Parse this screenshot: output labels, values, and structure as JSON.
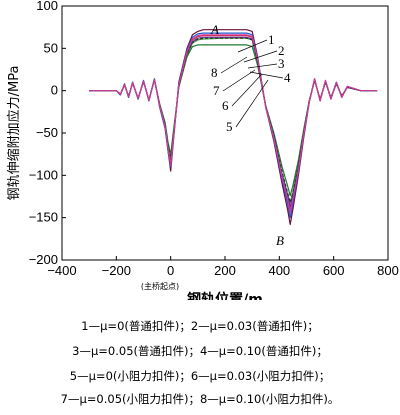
{
  "chart_data": {
    "type": "line",
    "xlabel": "钢轨位置/m",
    "ylabel": "钢轨伸缩附加应力/MPa",
    "x_note": "(主桥起点)",
    "xlim": [
      -400,
      800
    ],
    "ylim": [
      -200,
      100
    ],
    "xticks": [
      "−400",
      "−200",
      "0",
      "200",
      "400",
      "600",
      "800"
    ],
    "yticks": [
      "100",
      "50",
      "0",
      "−50",
      "−100",
      "−150",
      "−200"
    ],
    "point_labels": {
      "A": "A",
      "B": "B"
    },
    "annotations": [
      "1",
      "2",
      "8",
      "3",
      "4",
      "7",
      "6",
      "5"
    ],
    "x": [
      -300,
      -200,
      -185,
      -170,
      -155,
      -140,
      -120,
      -100,
      -80,
      -60,
      -40,
      -20,
      -10,
      0,
      10,
      30,
      60,
      80,
      100,
      120,
      200,
      280,
      300,
      320,
      350,
      380,
      410,
      430,
      440,
      450,
      470,
      490,
      510,
      530,
      550,
      570,
      590,
      610,
      630,
      650,
      700,
      760
    ],
    "series": [
      {
        "name": "1",
        "color": "#6b0f3a",
        "dash": "",
        "values": [
          0,
          0,
          -5,
          8,
          -8,
          10,
          -10,
          12,
          -12,
          14,
          -20,
          -45,
          -70,
          -95,
          -60,
          10,
          50,
          66,
          70,
          72,
          72,
          72,
          70,
          40,
          -20,
          -60,
          -110,
          -140,
          -158,
          -140,
          -100,
          -55,
          -14,
          14,
          -12,
          12,
          -10,
          10,
          -8,
          5,
          0,
          0
        ]
      },
      {
        "name": "2",
        "color": "#2255cc",
        "dash": "",
        "values": [
          0,
          0,
          -5,
          8,
          -8,
          10,
          -10,
          12,
          -12,
          14,
          -20,
          -45,
          -70,
          -90,
          -57,
          8,
          48,
          63,
          67,
          68,
          68,
          68,
          66,
          38,
          -20,
          -58,
          -105,
          -133,
          -150,
          -133,
          -96,
          -52,
          -14,
          14,
          -12,
          12,
          -10,
          10,
          -8,
          5,
          0,
          0
        ]
      },
      {
        "name": "3",
        "color": "#cc2a44",
        "dash": "",
        "values": [
          0,
          0,
          -4,
          7,
          -7,
          9,
          -9,
          11,
          -11,
          13,
          -18,
          -42,
          -66,
          -85,
          -54,
          6,
          46,
          60,
          64,
          65,
          65,
          65,
          63,
          36,
          -19,
          -55,
          -100,
          -126,
          -142,
          -126,
          -92,
          -50,
          -13,
          13,
          -11,
          11,
          -9,
          9,
          -7,
          4,
          0,
          0
        ]
      },
      {
        "name": "4",
        "color": "#1e7a33",
        "dash": "",
        "values": [
          0,
          0,
          -4,
          7,
          -7,
          9,
          -9,
          11,
          -11,
          13,
          -16,
          -38,
          -60,
          -76,
          -48,
          4,
          40,
          52,
          54,
          54,
          54,
          54,
          52,
          30,
          -18,
          -50,
          -90,
          -112,
          -124,
          -112,
          -82,
          -45,
          -12,
          12,
          -10,
          10,
          -8,
          8,
          -6,
          4,
          0,
          0
        ]
      },
      {
        "name": "5",
        "color": "#2f9a2f",
        "dash": "",
        "values": [
          0,
          0,
          -4,
          7,
          -7,
          9,
          -9,
          11,
          -11,
          13,
          -17,
          -40,
          -66,
          -88,
          -56,
          5,
          42,
          56,
          60,
          61,
          62,
          62,
          60,
          34,
          -20,
          -56,
          -98,
          -122,
          -132,
          -120,
          -88,
          -48,
          -12,
          12,
          -10,
          10,
          -8,
          8,
          -6,
          4,
          0,
          0
        ]
      },
      {
        "name": "6",
        "color": "#6a2a9a",
        "dash": "",
        "values": [
          0,
          0,
          -4,
          7,
          -7,
          9,
          -9,
          11,
          -11,
          13,
          -18,
          -42,
          -68,
          -86,
          -55,
          6,
          44,
          58,
          62,
          63,
          63,
          63,
          61,
          35,
          -19,
          -55,
          -99,
          -124,
          -137,
          -124,
          -90,
          -49,
          -13,
          13,
          -11,
          11,
          -9,
          9,
          -7,
          4,
          0,
          0
        ]
      },
      {
        "name": "7",
        "color": "#333333",
        "dash": "3 2",
        "values": [
          0,
          0,
          -4,
          7,
          -7,
          9,
          -9,
          11,
          -11,
          13,
          -17,
          -41,
          -64,
          -82,
          -52,
          5,
          43,
          57,
          61,
          62,
          62,
          62,
          60,
          34,
          -19,
          -53,
          -96,
          -120,
          -132,
          -120,
          -88,
          -48,
          -13,
          13,
          -11,
          11,
          -9,
          9,
          -7,
          4,
          0,
          0
        ]
      },
      {
        "name": "8",
        "color": "#d23c9a",
        "dash": "",
        "values": [
          0,
          0,
          -4,
          7,
          -7,
          9,
          -9,
          11,
          -11,
          13,
          -18,
          -43,
          -68,
          -88,
          -56,
          7,
          46,
          61,
          65,
          66,
          66,
          66,
          64,
          37,
          -20,
          -56,
          -102,
          -128,
          -144,
          -128,
          -94,
          -51,
          -14,
          14,
          -12,
          12,
          -10,
          10,
          -8,
          5,
          0,
          0
        ]
      }
    ]
  },
  "legend": {
    "line1": "1—μ=0(普通扣件)；2—μ=0.03(普通扣件)；",
    "line2": "3—μ=0.05(普通扣件)；4—μ=0.10(普通扣件)；",
    "line3": "5—μ=0(小阻力扣件)；6—μ=0.03(小阻力扣件)；",
    "line4": "7—μ=0.05(小阻力扣件)；8—μ=0.10(小阻力扣件)。"
  }
}
